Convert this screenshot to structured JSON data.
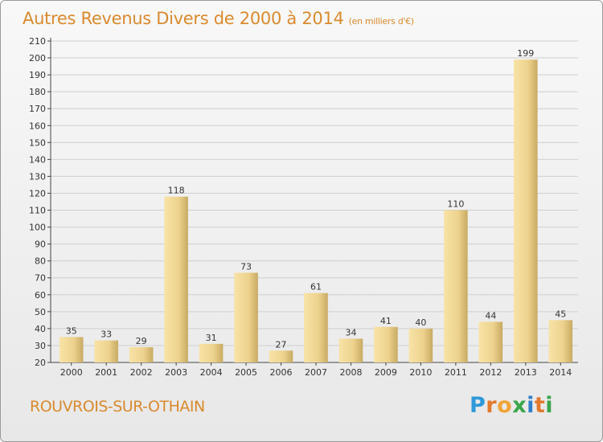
{
  "title": "Autres Revenus Divers de 2000 à 2014",
  "subtitle": "(en milliers d'€)",
  "commune": "ROUVROIS-SUR-OTHAIN",
  "logo": {
    "text": "Proxiti",
    "letters": [
      {
        "char": "P",
        "color": "#2f9ad9"
      },
      {
        "char": "r",
        "color": "#e2792c"
      },
      {
        "char": "o",
        "color": "#f0a437"
      },
      {
        "char": "x",
        "color": "#3aa54a"
      },
      {
        "char": "i",
        "color": "#2f7fcb"
      },
      {
        "char": "t",
        "color": "#e2792c"
      },
      {
        "char": "i",
        "color": "#3aa54a"
      }
    ]
  },
  "colors": {
    "title": "#d98a2e",
    "bar_light": "#f8e3a6",
    "bar_dark": "#c8ab62",
    "grid": "#cfcfcf"
  },
  "chart_data": {
    "type": "bar",
    "categories": [
      "2000",
      "2001",
      "2002",
      "2003",
      "2004",
      "2005",
      "2006",
      "2007",
      "2008",
      "2009",
      "2010",
      "2011",
      "2012",
      "2013",
      "2014"
    ],
    "values": [
      35,
      33,
      29,
      118,
      31,
      73,
      27,
      61,
      34,
      41,
      40,
      110,
      44,
      199,
      45
    ],
    "ylim": [
      20,
      210
    ],
    "ytick_step": 10,
    "grid": true
  }
}
